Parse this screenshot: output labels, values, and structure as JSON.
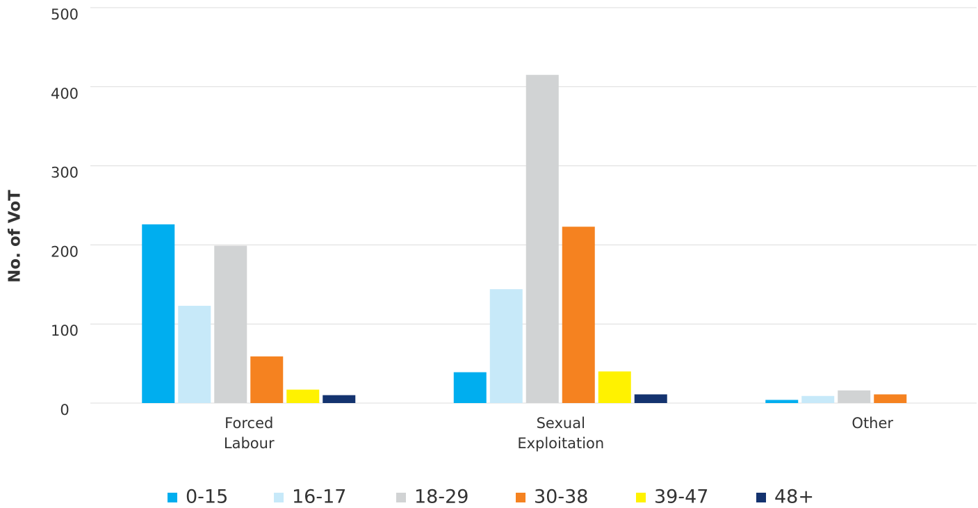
{
  "chart_data": {
    "type": "bar",
    "y_label": "No. of VoT",
    "categories": [
      "Forced Labour",
      "Sexual Exploitation",
      "Other"
    ],
    "series": [
      {
        "name": "0-15",
        "color": "#00aeef",
        "values": [
          226,
          39,
          4
        ]
      },
      {
        "name": "16-17",
        "color": "#c7e9f9",
        "values": [
          123,
          144,
          9
        ]
      },
      {
        "name": "18-29",
        "color": "#d1d3d4",
        "values": [
          199,
          415,
          16
        ]
      },
      {
        "name": "30-38",
        "color": "#f58220",
        "values": [
          59,
          223,
          11
        ]
      },
      {
        "name": "39-47",
        "color": "#fff200",
        "values": [
          17,
          40,
          0
        ]
      },
      {
        "name": "48+",
        "color": "#14336f",
        "values": [
          10,
          11,
          0
        ]
      }
    ],
    "ylim": [
      0,
      500
    ],
    "yticks": [
      0,
      100,
      200,
      300,
      400,
      500
    ],
    "grid": true,
    "legend": "bottom"
  }
}
